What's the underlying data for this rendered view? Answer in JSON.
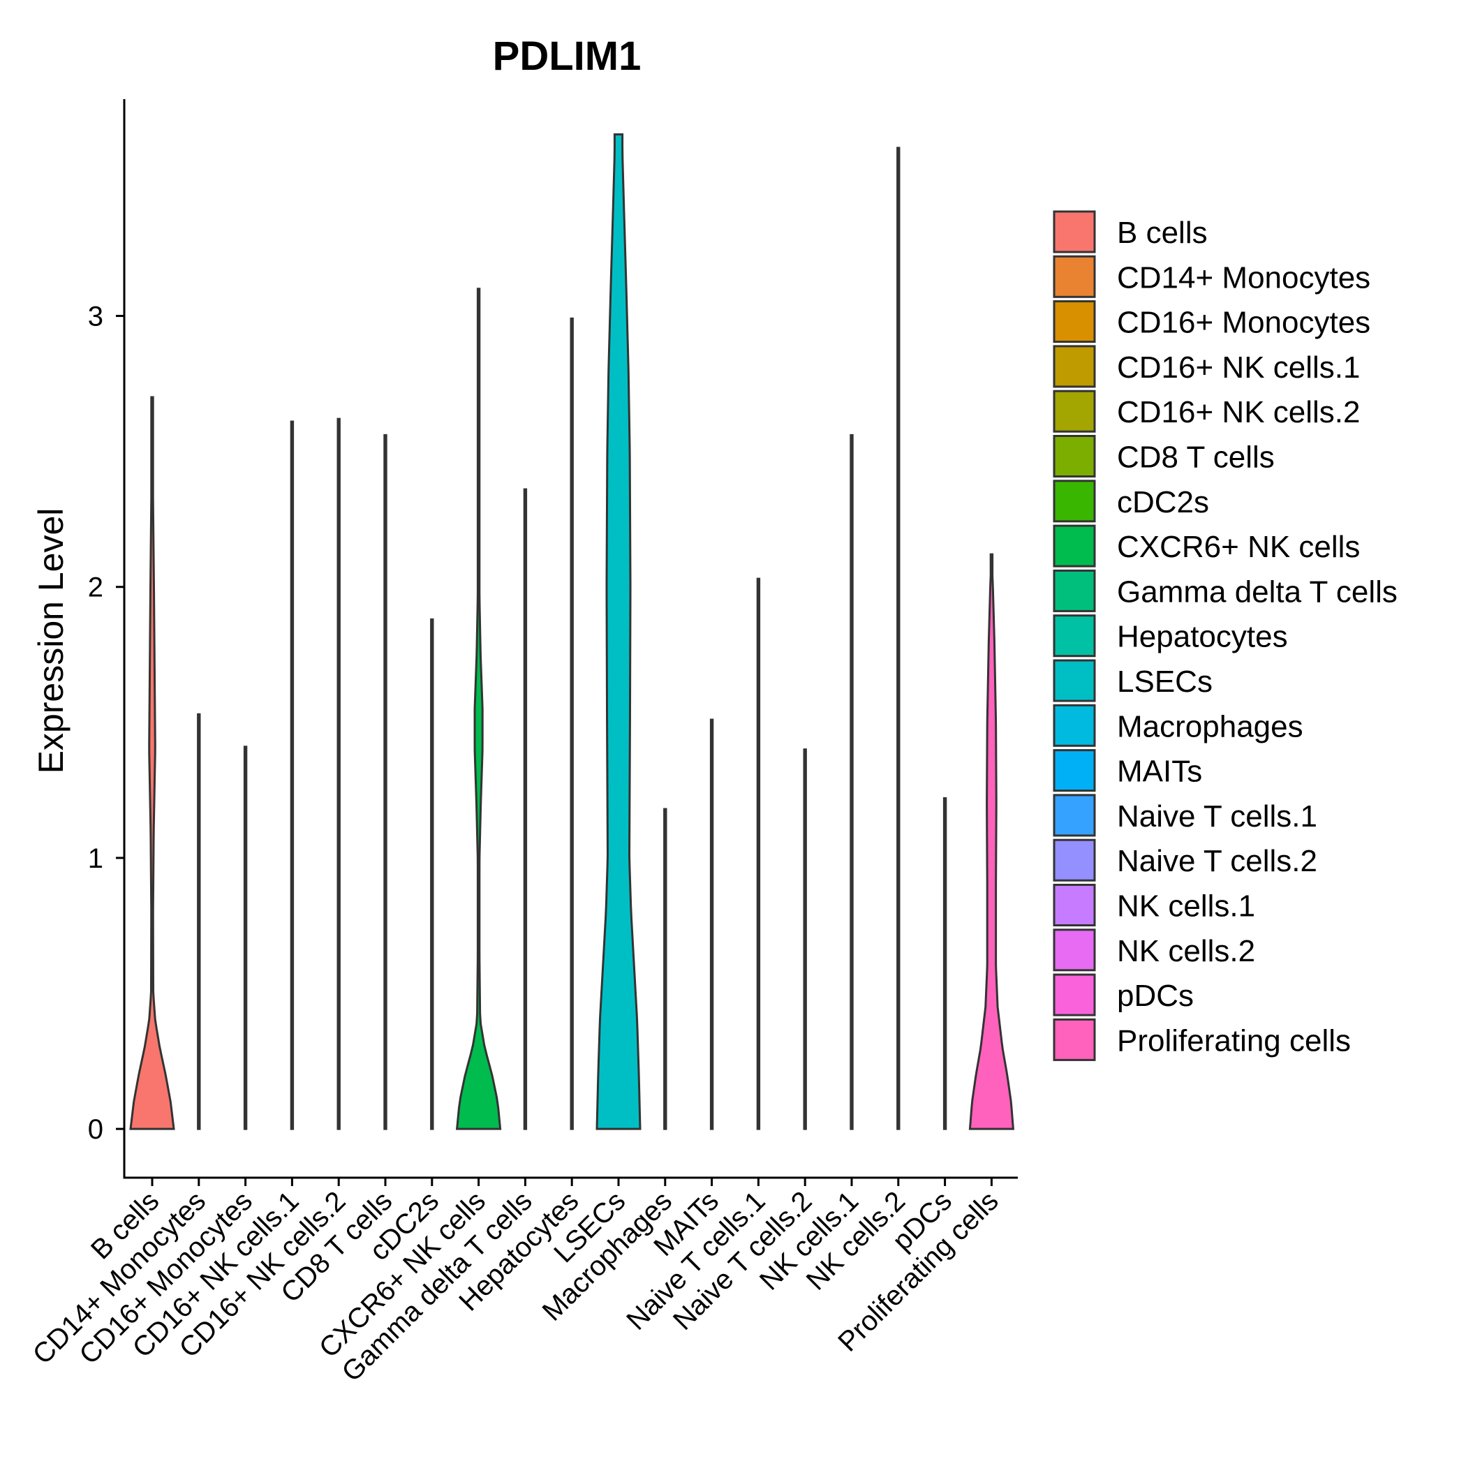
{
  "chart_data": {
    "type": "violin",
    "title": "PDLIM1",
    "xlabel": "",
    "ylabel": "Expression Level",
    "ylim": [
      -0.18,
      3.8
    ],
    "yticks": [
      0,
      1,
      2,
      3
    ],
    "grid": false,
    "legend": "right",
    "categories": [
      "B cells",
      "CD14+ Monocytes",
      "CD16+ Monocytes",
      "CD16+ NK cells.1",
      "CD16+ NK cells.2",
      "CD8 T cells",
      "cDC2s",
      "CXCR6+ NK cells",
      "Gamma delta T cells",
      "Hepatocytes",
      "LSECs",
      "Macrophages",
      "MAITs",
      "Naive T cells.1",
      "Naive T cells.2",
      "NK cells.1",
      "NK cells.2",
      "pDCs",
      "Proliferating cells"
    ],
    "colors": [
      "#F8766D",
      "#EA8331",
      "#D89000",
      "#C09B00",
      "#A3A500",
      "#7CAE00",
      "#39B600",
      "#00BB4E",
      "#00BF7D",
      "#00C1A3",
      "#00BFC4",
      "#00BAE0",
      "#00B0F6",
      "#35A2FF",
      "#9590FF",
      "#C77CFF",
      "#E76BF3",
      "#FA62DB",
      "#FF62BC"
    ],
    "max_values": [
      2.7,
      1.53,
      1.41,
      2.61,
      2.62,
      2.56,
      1.88,
      3.1,
      2.36,
      2.99,
      3.67,
      1.18,
      1.51,
      2.03,
      1.4,
      2.56,
      3.62,
      1.22,
      2.12
    ],
    "density_profiles": [
      [
        [
          0,
          1.0
        ],
        [
          0.1,
          0.85
        ],
        [
          0.2,
          0.62
        ],
        [
          0.3,
          0.35
        ],
        [
          0.4,
          0.14
        ],
        [
          0.5,
          0.05
        ],
        [
          0.8,
          0.04
        ],
        [
          1.1,
          0.07
        ],
        [
          1.4,
          0.14
        ],
        [
          1.6,
          0.12
        ],
        [
          2.0,
          0.08
        ],
        [
          2.4,
          0.03
        ],
        [
          2.7,
          0.0
        ]
      ],
      [
        [
          0,
          0.025
        ],
        [
          0.04,
          0.008
        ],
        [
          1.53,
          0.0
        ]
      ],
      [
        [
          0,
          0.025
        ],
        [
          0.04,
          0.008
        ],
        [
          1.41,
          0.0
        ]
      ],
      [
        [
          0,
          0.025
        ],
        [
          0.04,
          0.008
        ],
        [
          2.61,
          0.0
        ]
      ],
      [
        [
          0,
          0.025
        ],
        [
          0.04,
          0.008
        ],
        [
          2.62,
          0.0
        ]
      ],
      [
        [
          0,
          0.025
        ],
        [
          0.04,
          0.008
        ],
        [
          2.56,
          0.0
        ]
      ],
      [
        [
          0,
          0.025
        ],
        [
          0.04,
          0.008
        ],
        [
          1.88,
          0.0
        ]
      ],
      [
        [
          0,
          1.0
        ],
        [
          0.1,
          0.88
        ],
        [
          0.2,
          0.62
        ],
        [
          0.3,
          0.28
        ],
        [
          0.4,
          0.07
        ],
        [
          0.7,
          0.03
        ],
        [
          1.0,
          0.04
        ],
        [
          1.2,
          0.1
        ],
        [
          1.4,
          0.18
        ],
        [
          1.55,
          0.18
        ],
        [
          1.75,
          0.09
        ],
        [
          2.0,
          0.03
        ],
        [
          2.5,
          0.01
        ],
        [
          3.1,
          0.0
        ]
      ],
      [
        [
          0,
          0.025
        ],
        [
          0.04,
          0.008
        ],
        [
          2.36,
          0.0
        ]
      ],
      [
        [
          0,
          0.025
        ],
        [
          0.04,
          0.008
        ],
        [
          2.99,
          0.0
        ]
      ],
      [
        [
          0,
          1.0
        ],
        [
          0.2,
          0.94
        ],
        [
          0.4,
          0.86
        ],
        [
          0.6,
          0.72
        ],
        [
          0.8,
          0.58
        ],
        [
          1.0,
          0.5
        ],
        [
          1.5,
          0.53
        ],
        [
          2.0,
          0.55
        ],
        [
          2.5,
          0.52
        ],
        [
          2.8,
          0.46
        ],
        [
          3.1,
          0.36
        ],
        [
          3.4,
          0.25
        ],
        [
          3.6,
          0.18
        ],
        [
          3.67,
          0.18
        ]
      ],
      [
        [
          0,
          0.025
        ],
        [
          0.04,
          0.008
        ],
        [
          1.18,
          0.0
        ]
      ],
      [
        [
          0,
          0.025
        ],
        [
          0.04,
          0.008
        ],
        [
          1.51,
          0.0
        ]
      ],
      [
        [
          0,
          0.025
        ],
        [
          0.04,
          0.008
        ],
        [
          2.03,
          0.0
        ]
      ],
      [
        [
          0,
          0.025
        ],
        [
          0.04,
          0.008
        ],
        [
          1.4,
          0.0
        ]
      ],
      [
        [
          0,
          0.025
        ],
        [
          0.04,
          0.008
        ],
        [
          2.56,
          0.0
        ]
      ],
      [
        [
          0,
          0.025
        ],
        [
          0.04,
          0.008
        ],
        [
          3.62,
          0.0
        ]
      ],
      [
        [
          0,
          0.025
        ],
        [
          0.04,
          0.008
        ],
        [
          1.22,
          0.0
        ]
      ],
      [
        [
          0,
          1.0
        ],
        [
          0.1,
          0.9
        ],
        [
          0.2,
          0.72
        ],
        [
          0.3,
          0.5
        ],
        [
          0.45,
          0.28
        ],
        [
          0.6,
          0.2
        ],
        [
          0.9,
          0.2
        ],
        [
          1.2,
          0.22
        ],
        [
          1.5,
          0.2
        ],
        [
          1.8,
          0.13
        ],
        [
          2.0,
          0.06
        ],
        [
          2.12,
          0.0
        ]
      ]
    ]
  }
}
